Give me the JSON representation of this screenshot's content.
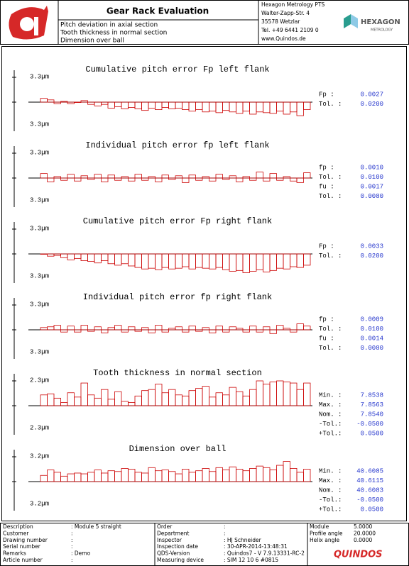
{
  "header": {
    "title": "Gear Rack Evaluation",
    "lines": [
      "Pitch deviation in axial section",
      "Tooth thickness in normal section",
      "Dimension over ball"
    ],
    "address": [
      "Hexagon Metrology PTS",
      "Walter-Zapp-Str. 4",
      "35578 Wetzlar",
      "Tel. +49 6441 2109 0",
      "www.Quindos.de"
    ],
    "brand": "HEXAGON",
    "brand_sub": "METROLOGY"
  },
  "panels": [
    {
      "title": "Cumulative pitch error Fp left flank",
      "scale_tick": {
        "value": 3.3,
        "label": "3.3µm"
      },
      "values": [
        0.5,
        0.3,
        -0.2,
        0.1,
        -0.2,
        0,
        0.2,
        -0.3,
        -0.5,
        -0.3,
        -0.8,
        -0.6,
        -0.9,
        -0.7,
        -0.9,
        -1.1,
        -0.8,
        -1.0,
        -0.7,
        -0.9,
        -0.8,
        -1.0,
        -1.2,
        -1.0,
        -1.3,
        -1.2,
        -1.4,
        -1.1,
        -1.3,
        -1.5,
        -1.2,
        -1.6,
        -1.3,
        -1.4,
        -1.5,
        -1.2,
        -1.6,
        -1.3,
        -1.8,
        -1.0
      ],
      "stats": [
        [
          "Fp   :",
          "0.0027"
        ],
        [
          "Tol. :",
          "0.0200"
        ]
      ]
    },
    {
      "title": "Individual pitch error fp left flank",
      "scale_tick": {
        "value": 3.3,
        "label": "3.3µm"
      },
      "values": [
        0.6,
        -0.5,
        0.2,
        -0.3,
        0.5,
        -0.4,
        0.3,
        -0.2,
        0.5,
        -0.5,
        0.4,
        -0.3,
        0.2,
        -0.4,
        0.5,
        -0.3,
        0.2,
        -0.5,
        0.4,
        -0.2,
        0.3,
        -0.6,
        0.4,
        -0.3,
        0.2,
        -0.4,
        0.5,
        -0.2,
        0.3,
        -0.5,
        0.2,
        -0.3,
        0.8,
        -0.4,
        0.6,
        -0.3,
        0.2,
        -0.4,
        -0.6,
        0.7
      ],
      "stats": [
        [
          "fp   :",
          "0.0010"
        ],
        [
          "Tol. :",
          "0.0100"
        ],
        [
          "fu   :",
          "0.0017"
        ],
        [
          "Tol. :",
          "0.0080"
        ]
      ]
    },
    {
      "title": "Cumulative pitch error Fp right flank",
      "scale_tick": {
        "value": 3.3,
        "label": "3.3µm"
      },
      "values": [
        0,
        -0.3,
        -0.2,
        -0.5,
        -0.8,
        -0.6,
        -0.9,
        -1.0,
        -1.2,
        -0.9,
        -1.3,
        -1.5,
        -1.3,
        -1.6,
        -1.8,
        -2.0,
        -1.9,
        -2.1,
        -1.8,
        -2.0,
        -1.9,
        -1.7,
        -2.0,
        -1.8,
        -1.9,
        -2.0,
        -1.8,
        -2.1,
        -2.3,
        -2.2,
        -2.5,
        -2.3,
        -2.1,
        -2.4,
        -2.2,
        -1.9,
        -2.0,
        -1.7,
        -1.8,
        -1.5
      ],
      "stats": [
        [
          "Fp   :",
          "0.0033"
        ],
        [
          "Tol. :",
          "0.0200"
        ]
      ]
    },
    {
      "title": "Individual pitch error fp right flank",
      "scale_tick": {
        "value": 3.3,
        "label": "3.3µm"
      },
      "values": [
        0.3,
        0.4,
        0.6,
        -0.3,
        0.5,
        -0.3,
        0.6,
        -0.2,
        0.4,
        -0.4,
        0.3,
        0.6,
        -0.3,
        0.4,
        -0.2,
        0.3,
        -0.4,
        0.6,
        -0.3,
        0.2,
        0.4,
        -0.3,
        0.5,
        -0.2,
        0.3,
        -0.4,
        0.5,
        -0.3,
        0.4,
        0.2,
        -0.3,
        0.5,
        -0.3,
        0.4,
        -0.5,
        0.6,
        0.2,
        -0.3,
        0.8,
        0.5
      ],
      "stats": [
        [
          "fp   :",
          "0.0009"
        ],
        [
          "Tol. :",
          "0.0100"
        ],
        [
          "fu   :",
          "0.0014"
        ],
        [
          "Tol. :",
          "0.0080"
        ]
      ]
    },
    {
      "title": "Tooth thickness in normal section",
      "scale_tick": {
        "value": 2.3,
        "label": "2.3µm"
      },
      "values": [
        1.0,
        1.1,
        0.7,
        0.3,
        1.2,
        0.8,
        2.1,
        1.0,
        0.7,
        1.5,
        0.6,
        1.3,
        0.4,
        0.3,
        0.9,
        1.4,
        1.5,
        2.0,
        1.2,
        1.5,
        1.0,
        0.9,
        1.4,
        1.6,
        1.8,
        0.8,
        1.2,
        1.0,
        1.7,
        1.3,
        0.9,
        1.5,
        2.3,
        2.0,
        2.2,
        2.3,
        2.2,
        2.1,
        1.5,
        2.1
      ],
      "stats": [
        [
          "Min. :",
          "7.8538"
        ],
        [
          "Max. :",
          "7.8563"
        ],
        [
          "Nom. :",
          "7.8540"
        ],
        [
          "-Tol.:",
          "-0.0500"
        ],
        [
          "+Tol.:",
          "0.0500"
        ]
      ]
    },
    {
      "title": "Dimension over ball",
      "scale_tick": {
        "value": 3.2,
        "label": "3.2µm"
      },
      "values": [
        0.8,
        1.5,
        1.2,
        0.7,
        1.0,
        1.1,
        1.0,
        1.2,
        1.5,
        1.1,
        1.4,
        1.3,
        1.7,
        1.6,
        1.2,
        1.1,
        1.8,
        1.4,
        1.5,
        1.3,
        1.0,
        1.6,
        1.2,
        1.4,
        1.7,
        1.3,
        1.8,
        1.5,
        1.9,
        1.6,
        1.4,
        1.7,
        2.0,
        1.8,
        1.5,
        2.1,
        2.6,
        1.7,
        1.2,
        1.6
      ],
      "stats": [
        [
          "Min. :",
          "40.6085"
        ],
        [
          "Max. :",
          "40.6115"
        ],
        [
          "Nom. :",
          "40.6083"
        ],
        [
          "-Tol.:",
          "-0.0500"
        ],
        [
          "+Tol.:",
          "0.0500"
        ]
      ]
    }
  ],
  "footer": {
    "col1": [
      [
        "Description",
        ": Module 5 straight"
      ],
      [
        "Customer",
        ":"
      ],
      [
        "Drawing number",
        ":"
      ],
      [
        "Serial number",
        ":"
      ],
      [
        "Remarks",
        ": Demo"
      ],
      [
        "Article number",
        ":"
      ]
    ],
    "col2": [
      [
        "Order",
        ":"
      ],
      [
        "Department",
        ":"
      ],
      [
        "Inspector",
        ": HJ Schneider"
      ],
      [
        "Inspection date",
        ": 30-APR-2014-13:48:31"
      ],
      [
        "QDS-Version",
        ": Quindos7 - V 7.9.13331-RC-2"
      ],
      [
        "Measuring device",
        ": SIM 12 10  6 #0815"
      ]
    ],
    "col3": [
      [
        "Module",
        "5.0000"
      ],
      [
        "Profile angle",
        "20.0000"
      ],
      [
        "Helix angle",
        "0.0000"
      ]
    ],
    "logo": "QUINDOS"
  }
}
